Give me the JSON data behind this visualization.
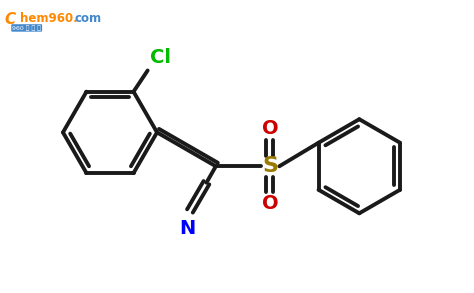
{
  "bg_color": "#ffffff",
  "bond_color": "#1a1a1a",
  "cl_color": "#00bb00",
  "n_color": "#0000ff",
  "o_color": "#cc0000",
  "s_color": "#9b7a00",
  "wm_orange": "#ff8800",
  "wm_blue": "#4488cc",
  "lw": 2.8,
  "figsize": [
    4.74,
    2.93
  ],
  "dpi": 100,
  "xlim": [
    0,
    10
  ],
  "ylim": [
    0,
    6.2
  ]
}
